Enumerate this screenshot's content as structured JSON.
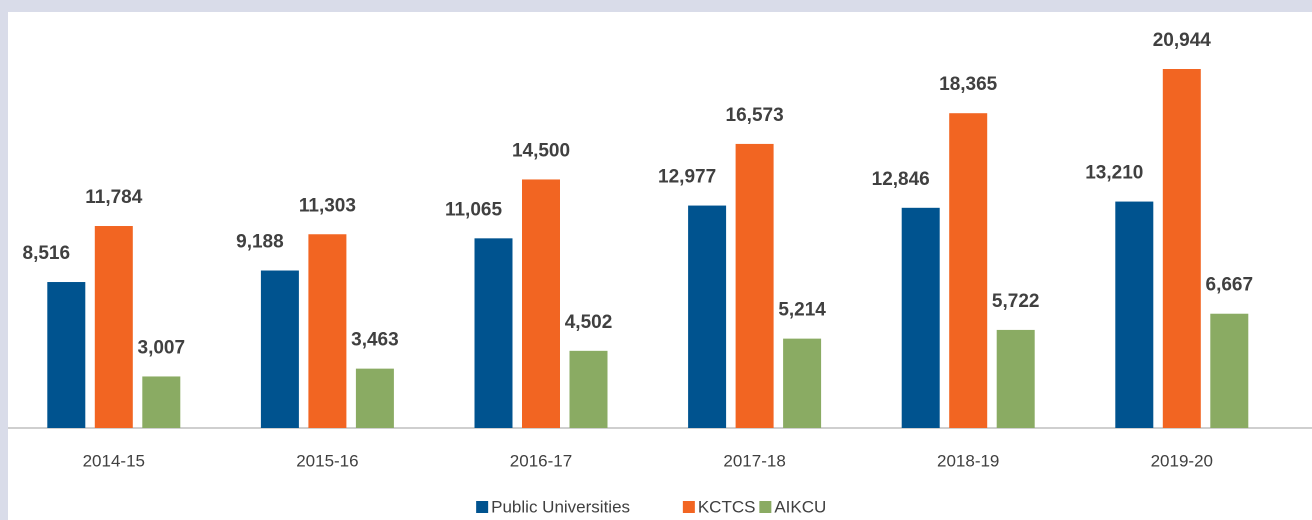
{
  "chart_data": {
    "type": "bar",
    "categories": [
      "2014-15",
      "2015-16",
      "2016-17",
      "2017-18",
      "2018-19",
      "2019-20"
    ],
    "series": [
      {
        "name": "Public Universities",
        "color": "#00538f",
        "values": [
          8516,
          9188,
          11065,
          12977,
          12846,
          13210
        ],
        "value_labels": [
          "8,516",
          "9,188",
          "11,065",
          "12,977",
          "12,846",
          "13,210"
        ]
      },
      {
        "name": "KCTCS",
        "color": "#f26522",
        "values": [
          11784,
          11303,
          14500,
          16573,
          18365,
          20944
        ],
        "value_labels": [
          "11,784",
          "11,303",
          "14,500",
          "16,573",
          "18,365",
          "20,944"
        ]
      },
      {
        "name": "AIKCU",
        "color": "#8aab63",
        "values": [
          3007,
          3463,
          4502,
          5214,
          5722,
          6667
        ],
        "value_labels": [
          "3,007",
          "3,463",
          "4,502",
          "5,214",
          "5,722",
          "6,667"
        ]
      }
    ],
    "legend": "bottom"
  }
}
